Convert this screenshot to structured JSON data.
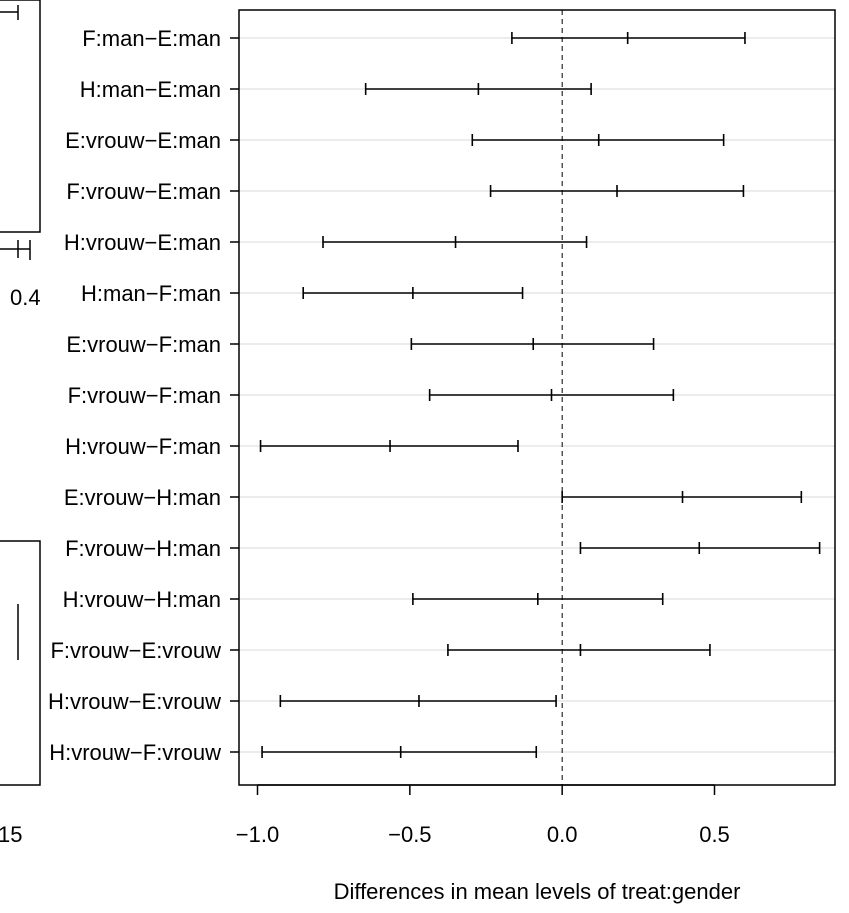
{
  "chart_data": {
    "type": "errorbar",
    "xlabel": "Differences in mean levels of treat:gender",
    "xlim": [
      -1.06,
      0.87
    ],
    "xticks": [
      -1.0,
      -0.5,
      0.0,
      0.5
    ],
    "xtick_labels": [
      "−1.0",
      "−0.5",
      "0.0",
      "0.5"
    ],
    "reference_line": 0.0,
    "comparisons": [
      {
        "label": "F:man−E:man",
        "lwr": -0.165,
        "diff": 0.215,
        "upr": 0.6
      },
      {
        "label": "H:man−E:man",
        "lwr": -0.645,
        "diff": -0.275,
        "upr": 0.095
      },
      {
        "label": "E:vrouw−E:man",
        "lwr": -0.295,
        "diff": 0.12,
        "upr": 0.53
      },
      {
        "label": "F:vrouw−E:man",
        "lwr": -0.235,
        "diff": 0.18,
        "upr": 0.595
      },
      {
        "label": "H:vrouw−E:man",
        "lwr": -0.785,
        "diff": -0.35,
        "upr": 0.08
      },
      {
        "label": "H:man−F:man",
        "lwr": -0.85,
        "diff": -0.49,
        "upr": -0.13
      },
      {
        "label": "E:vrouw−F:man",
        "lwr": -0.495,
        "diff": -0.095,
        "upr": 0.3
      },
      {
        "label": "F:vrouw−F:man",
        "lwr": -0.435,
        "diff": -0.035,
        "upr": 0.365
      },
      {
        "label": "H:vrouw−F:man",
        "lwr": -0.99,
        "diff": -0.565,
        "upr": -0.145
      },
      {
        "label": "E:vrouw−H:man",
        "lwr": 0.0,
        "diff": 0.395,
        "upr": 0.785
      },
      {
        "label": "F:vrouw−H:man",
        "lwr": 0.06,
        "diff": 0.45,
        "upr": 0.845
      },
      {
        "label": "H:vrouw−H:man",
        "lwr": -0.49,
        "diff": -0.08,
        "upr": 0.33
      },
      {
        "label": "F:vrouw−E:vrouw",
        "lwr": -0.375,
        "diff": 0.06,
        "upr": 0.485
      },
      {
        "label": "H:vrouw−E:vrouw",
        "lwr": -0.925,
        "diff": -0.47,
        "upr": -0.02
      },
      {
        "label": "H:vrouw−F:vrouw",
        "lwr": -0.985,
        "diff": -0.53,
        "upr": -0.085
      }
    ]
  },
  "background_fragments": {
    "left_tick_label": "0.4",
    "bottom_left_tick_label": "15"
  }
}
